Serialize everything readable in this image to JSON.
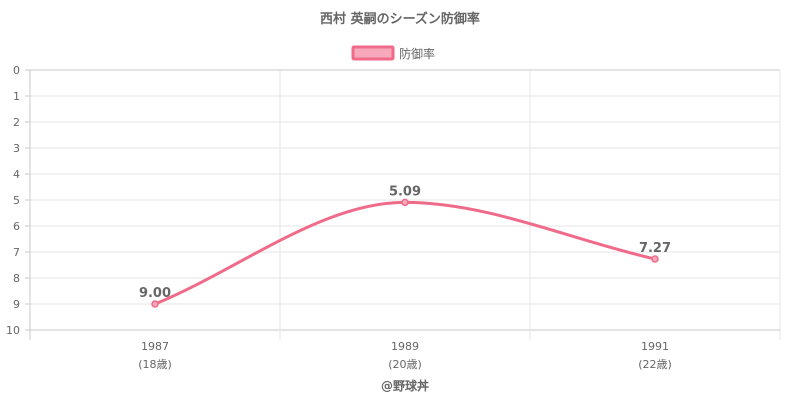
{
  "chart_data": {
    "type": "line",
    "title": "西村 英嗣のシーズン防御率",
    "legend": {
      "label": "防御率",
      "placement": "top-center"
    },
    "x_categories": [
      "1987",
      "1989",
      "1991"
    ],
    "x_sublabels": [
      "(18歳)",
      "(20歳)",
      "(22歳)"
    ],
    "series": [
      {
        "name": "防御率",
        "values": [
          9.0,
          5.09,
          7.27
        ],
        "labels": [
          "9.00",
          "5.09",
          "7.27"
        ]
      }
    ],
    "y_axis": {
      "min": 0,
      "max": 10,
      "step": 1,
      "reversed": true,
      "ticks": [
        "0",
        "1",
        "2",
        "3",
        "4",
        "5",
        "6",
        "7",
        "8",
        "9",
        "10"
      ]
    },
    "grid": true,
    "colors": {
      "line": "#f06a8a",
      "fill": "#f7a8bb",
      "grid": "#e5e5e5",
      "text": "#666666"
    },
    "footer": "@野球丼"
  }
}
